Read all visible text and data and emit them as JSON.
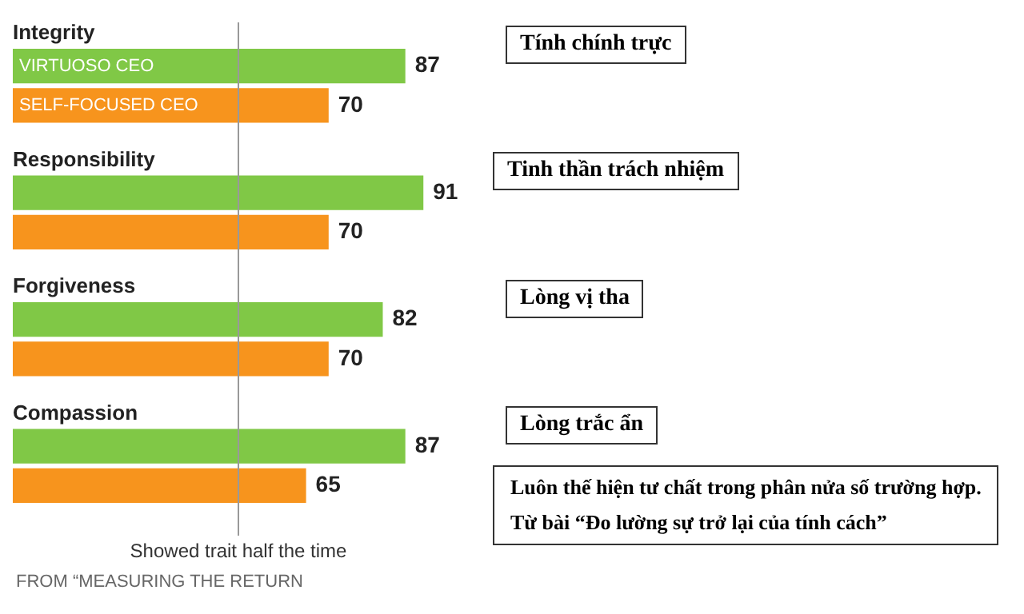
{
  "chart_data": {
    "type": "bar",
    "orientation": "horizontal",
    "categories": [
      "Integrity",
      "Responsibility",
      "Forgiveness",
      "Compassion"
    ],
    "series": [
      {
        "name": "VIRTUOSO CEO",
        "color": "#80c846",
        "values": [
          87,
          91,
          82,
          87
        ]
      },
      {
        "name": "SELF-FOCUSED CEO",
        "color": "#f7941d",
        "values": [
          70,
          70,
          70,
          65
        ]
      }
    ],
    "data_labels": true,
    "legend": false,
    "ref_lines": [
      {
        "axis": "x",
        "value": 50,
        "label": "Showed trait half the time",
        "color": "#999999"
      }
    ],
    "annotations": [
      "Tính chính trực",
      "Tinh thần trách nhiệm",
      "Lòng vị tha",
      "Lòng trắc ẩn",
      "Luôn thế hiện tư chất trong phân nửa số trường hợp.",
      "Từ bài “Đo lường sự trở lại của tính cách”",
      "FROM “MEASURING THE RETURN"
    ]
  }
}
